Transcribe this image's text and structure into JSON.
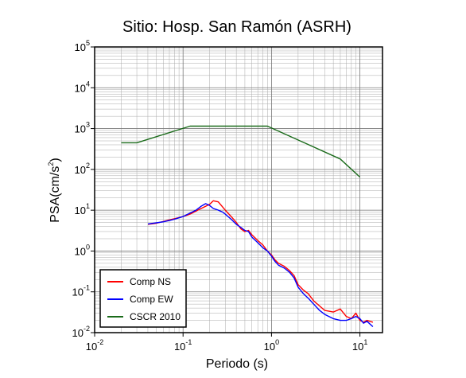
{
  "chart_data": {
    "type": "line",
    "title": "Sitio: Hosp. San Ramón (ASRH)",
    "xlabel": "Periodo (s)",
    "ylabel": {
      "base": "PSA(cm/s",
      "sup": "2",
      "close": ")"
    },
    "xscale": "log",
    "yscale": "log",
    "xlim": [
      0.01,
      18
    ],
    "ylim": [
      0.01,
      100000
    ],
    "grid": true,
    "legend_position": "bottom-left",
    "x_ticks": [
      {
        "base": "10",
        "exp": "-2",
        "value": 0.01
      },
      {
        "base": "10",
        "exp": "-1",
        "value": 0.1
      },
      {
        "base": "10",
        "exp": "0",
        "value": 1
      },
      {
        "base": "10",
        "exp": "1",
        "value": 10
      }
    ],
    "y_ticks": [
      {
        "base": "10",
        "exp": "-2",
        "value": 0.01
      },
      {
        "base": "10",
        "exp": "-1",
        "value": 0.1
      },
      {
        "base": "10",
        "exp": "0",
        "value": 1
      },
      {
        "base": "10",
        "exp": "1",
        "value": 10
      },
      {
        "base": "10",
        "exp": "2",
        "value": 100
      },
      {
        "base": "10",
        "exp": "3",
        "value": 1000
      },
      {
        "base": "10",
        "exp": "4",
        "value": 10000
      },
      {
        "base": "10",
        "exp": "5",
        "value": 100000
      }
    ],
    "series": [
      {
        "name": "Comp NS",
        "color": "#ff0000",
        "points": [
          [
            0.04,
            4.5
          ],
          [
            0.05,
            4.8
          ],
          [
            0.06,
            5.3
          ],
          [
            0.07,
            5.8
          ],
          [
            0.08,
            6.2
          ],
          [
            0.09,
            6.6
          ],
          [
            0.1,
            7.0
          ],
          [
            0.12,
            8.0
          ],
          [
            0.14,
            9.5
          ],
          [
            0.16,
            11.0
          ],
          [
            0.18,
            12.5
          ],
          [
            0.2,
            14.0
          ],
          [
            0.22,
            17.0
          ],
          [
            0.25,
            16.0
          ],
          [
            0.28,
            12.0
          ],
          [
            0.3,
            10.0
          ],
          [
            0.35,
            7.0
          ],
          [
            0.4,
            5.0
          ],
          [
            0.45,
            3.5
          ],
          [
            0.5,
            3.0
          ],
          [
            0.55,
            3.2
          ],
          [
            0.6,
            2.5
          ],
          [
            0.7,
            1.8
          ],
          [
            0.8,
            1.4
          ],
          [
            0.9,
            1.0
          ],
          [
            1.0,
            0.8
          ],
          [
            1.1,
            0.6
          ],
          [
            1.2,
            0.5
          ],
          [
            1.4,
            0.42
          ],
          [
            1.6,
            0.33
          ],
          [
            1.8,
            0.25
          ],
          [
            2.0,
            0.15
          ],
          [
            2.3,
            0.11
          ],
          [
            2.6,
            0.09
          ],
          [
            3.0,
            0.06
          ],
          [
            3.5,
            0.045
          ],
          [
            4.0,
            0.035
          ],
          [
            5.0,
            0.032
          ],
          [
            6.0,
            0.038
          ],
          [
            7.0,
            0.025
          ],
          [
            8.0,
            0.022
          ],
          [
            9.0,
            0.03
          ],
          [
            10.0,
            0.02
          ],
          [
            11.0,
            0.018
          ],
          [
            12.0,
            0.02
          ],
          [
            14.0,
            0.018
          ]
        ]
      },
      {
        "name": "Comp EW",
        "color": "#0000ff",
        "points": [
          [
            0.04,
            4.6
          ],
          [
            0.05,
            4.9
          ],
          [
            0.06,
            5.2
          ],
          [
            0.07,
            5.6
          ],
          [
            0.08,
            6.0
          ],
          [
            0.09,
            6.5
          ],
          [
            0.1,
            7.0
          ],
          [
            0.12,
            8.5
          ],
          [
            0.14,
            10.0
          ],
          [
            0.16,
            12.5
          ],
          [
            0.18,
            14.5
          ],
          [
            0.2,
            13.0
          ],
          [
            0.22,
            11.0
          ],
          [
            0.25,
            10.0
          ],
          [
            0.28,
            9.0
          ],
          [
            0.3,
            8.0
          ],
          [
            0.35,
            6.0
          ],
          [
            0.4,
            4.5
          ],
          [
            0.45,
            3.8
          ],
          [
            0.5,
            3.2
          ],
          [
            0.55,
            3.0
          ],
          [
            0.6,
            2.2
          ],
          [
            0.7,
            1.6
          ],
          [
            0.8,
            1.2
          ],
          [
            0.9,
            1.0
          ],
          [
            1.0,
            0.75
          ],
          [
            1.1,
            0.55
          ],
          [
            1.2,
            0.45
          ],
          [
            1.4,
            0.38
          ],
          [
            1.6,
            0.3
          ],
          [
            1.8,
            0.22
          ],
          [
            2.0,
            0.13
          ],
          [
            2.3,
            0.09
          ],
          [
            2.6,
            0.07
          ],
          [
            3.0,
            0.05
          ],
          [
            3.5,
            0.035
          ],
          [
            4.0,
            0.028
          ],
          [
            5.0,
            0.022
          ],
          [
            6.0,
            0.02
          ],
          [
            7.0,
            0.02
          ],
          [
            8.0,
            0.022
          ],
          [
            9.0,
            0.025
          ],
          [
            10.0,
            0.022
          ],
          [
            11.0,
            0.017
          ],
          [
            12.0,
            0.019
          ],
          [
            14.0,
            0.014
          ]
        ]
      },
      {
        "name": "CSCR 2010",
        "color": "#1a6b1a",
        "points": [
          [
            0.02,
            450
          ],
          [
            0.03,
            450
          ],
          [
            0.12,
            1150
          ],
          [
            0.9,
            1150
          ],
          [
            6.0,
            180
          ],
          [
            10.0,
            65
          ]
        ]
      }
    ]
  }
}
